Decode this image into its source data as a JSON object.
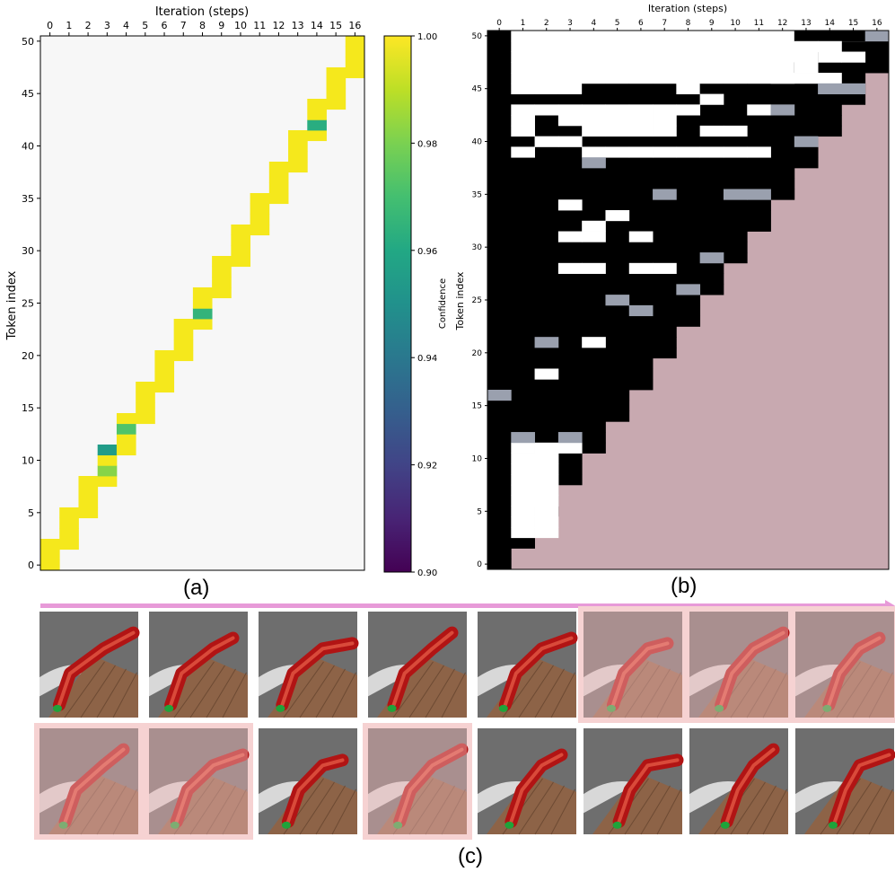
{
  "labels": {
    "a": "(a)",
    "b": "(b)",
    "c": "(c)"
  },
  "colors": {
    "high_conf": "#f5e81c",
    "masked": "#f7f7f7",
    "black": "#000000",
    "white": "#ffffff",
    "gray": "#9aa0ae",
    "mauve": "#c8a9b0",
    "arrow": "#e79ad8",
    "highlight": "#f6d2d2"
  },
  "chart_data": [
    {
      "type": "heatmap",
      "panel": "a",
      "xlabel": "Iteration (steps)",
      "ylabel": "Token index",
      "x_ticks": [
        "0",
        "1",
        "2",
        "3",
        "4",
        "5",
        "6",
        "7",
        "8",
        "9",
        "10",
        "11",
        "12",
        "13",
        "14",
        "15",
        "16"
      ],
      "y_ticks": [
        "0",
        "5",
        "10",
        "15",
        "20",
        "25",
        "30",
        "35",
        "40",
        "45",
        "50"
      ],
      "xlim": [
        0,
        16
      ],
      "ylim": [
        0,
        50
      ],
      "colorbar": {
        "label": "Confidence",
        "range": [
          0.9,
          1.0
        ],
        "ticks": [
          "0.90",
          "0.92",
          "0.94",
          "0.96",
          "0.98",
          "1.00"
        ]
      },
      "valid_region": "cells below the diagonal token ≈ 3·step",
      "default_value": 1.0,
      "low_confidence_cells": [
        [
          5,
          29,
          0.9
        ],
        [
          5,
          23,
          0.902
        ],
        [
          2,
          19,
          0.915
        ],
        [
          2,
          31,
          0.92
        ],
        [
          0,
          21,
          0.918
        ],
        [
          0,
          8,
          0.925
        ],
        [
          0,
          9,
          0.93
        ],
        [
          3,
          23,
          0.925
        ],
        [
          3,
          14,
          0.928
        ],
        [
          5,
          24,
          0.93
        ],
        [
          4,
          26,
          0.935
        ],
        [
          1,
          44,
          0.94
        ],
        [
          0,
          24,
          0.94
        ],
        [
          1,
          21,
          0.94
        ],
        [
          2,
          20,
          0.945
        ],
        [
          0,
          29,
          0.945
        ],
        [
          0,
          16,
          0.945
        ],
        [
          2,
          25,
          0.945
        ],
        [
          3,
          16,
          0.945
        ],
        [
          6,
          25,
          0.945
        ],
        [
          4,
          16,
          0.95
        ],
        [
          2,
          28,
          0.95
        ],
        [
          0,
          23,
          0.95
        ],
        [
          1,
          25,
          0.95
        ],
        [
          0,
          10,
          0.952
        ],
        [
          2,
          13,
          0.955
        ],
        [
          3,
          11,
          0.955
        ],
        [
          1,
          23,
          0.955
        ],
        [
          0,
          25,
          0.955
        ],
        [
          2,
          29,
          0.955
        ],
        [
          2,
          17,
          0.96
        ],
        [
          0,
          14,
          0.96
        ],
        [
          14,
          42,
          0.962
        ],
        [
          1,
          42,
          0.965
        ],
        [
          8,
          24,
          0.965
        ],
        [
          4,
          24,
          0.965
        ],
        [
          2,
          37,
          0.965
        ],
        [
          1,
          20,
          0.965
        ],
        [
          0,
          20,
          0.965
        ],
        [
          0,
          17,
          0.962
        ],
        [
          2,
          36,
          0.97
        ],
        [
          2,
          30,
          0.97
        ],
        [
          2,
          24,
          0.97
        ],
        [
          0,
          22,
          0.968
        ],
        [
          0,
          12,
          0.968
        ],
        [
          4,
          13,
          0.972
        ],
        [
          1,
          12,
          0.972
        ],
        [
          2,
          41,
          0.975
        ],
        [
          2,
          33,
          0.975
        ],
        [
          0,
          26,
          0.975
        ],
        [
          1,
          28,
          0.975
        ],
        [
          3,
          24,
          0.975
        ],
        [
          2,
          35,
          0.975
        ],
        [
          3,
          32,
          0.978
        ],
        [
          1,
          13,
          0.978
        ],
        [
          2,
          22,
          0.978
        ],
        [
          3,
          18,
          0.978
        ],
        [
          7,
          26,
          0.98
        ],
        [
          0,
          18,
          0.98
        ],
        [
          1,
          16,
          0.98
        ],
        [
          1,
          38,
          0.982
        ],
        [
          3,
          9,
          0.982
        ],
        [
          4,
          17,
          0.982
        ],
        [
          1,
          27,
          0.982
        ],
        [
          2,
          12,
          0.982
        ],
        [
          0,
          7,
          0.985
        ],
        [
          1,
          9,
          0.985
        ],
        [
          0,
          19,
          0.985
        ],
        [
          3,
          21,
          0.985
        ],
        [
          1,
          30,
          0.985
        ],
        [
          2,
          42,
          0.985
        ],
        [
          8,
          36,
          0.988
        ],
        [
          4,
          36,
          0.988
        ],
        [
          3,
          36,
          0.988
        ],
        [
          1,
          41,
          0.988
        ],
        [
          0,
          49,
          0.99
        ],
        [
          5,
          30,
          0.99
        ],
        [
          8,
          29,
          0.99
        ],
        [
          3,
          38,
          0.99
        ],
        [
          4,
          28,
          0.99
        ]
      ]
    },
    {
      "type": "heatmap",
      "panel": "b",
      "xlabel": "Iteration (steps)",
      "ylabel": "Token index",
      "x_ticks": [
        "0",
        "1",
        "2",
        "3",
        "4",
        "5",
        "6",
        "7",
        "8",
        "9",
        "10",
        "11",
        "12",
        "13",
        "14",
        "15",
        "16"
      ],
      "y_ticks": [
        "0",
        "5",
        "10",
        "15",
        "20",
        "25",
        "30",
        "35",
        "40",
        "45",
        "50"
      ],
      "xlim": [
        0,
        16
      ],
      "ylim": [
        0,
        50
      ],
      "categories": [
        "black",
        "white",
        "gray",
        "mauve"
      ],
      "column0_black_to_row": 50,
      "black_top_by_column": [
        50,
        44,
        44,
        44,
        45,
        45,
        45,
        45,
        44,
        45,
        45,
        45,
        45,
        47,
        48,
        49,
        49
      ],
      "white_runs": [
        [
          1,
          2,
          43,
          43
        ],
        [
          3,
          8,
          43,
          43
        ],
        [
          1,
          1,
          42,
          42
        ],
        [
          3,
          7,
          42,
          42
        ],
        [
          1,
          1,
          41,
          41
        ],
        [
          4,
          7,
          41,
          41
        ],
        [
          9,
          10,
          41,
          41
        ],
        [
          2,
          3,
          40,
          40
        ],
        [
          1,
          1,
          39,
          39
        ],
        [
          4,
          11,
          39,
          39
        ],
        [
          3,
          3,
          34,
          34
        ],
        [
          5,
          5,
          33,
          33
        ],
        [
          4,
          4,
          32,
          32
        ],
        [
          3,
          4,
          31,
          31
        ],
        [
          6,
          6,
          31,
          31
        ],
        [
          3,
          4,
          28,
          28
        ],
        [
          6,
          7,
          28,
          28
        ],
        [
          4,
          4,
          21,
          21
        ],
        [
          2,
          2,
          18,
          18
        ],
        [
          1,
          3,
          11,
          11
        ],
        [
          1,
          2,
          3,
          10
        ],
        [
          2,
          2,
          6,
          10
        ],
        [
          9,
          9,
          44,
          44
        ],
        [
          11,
          11,
          43,
          43
        ],
        [
          13,
          14,
          49,
          49
        ],
        [
          13,
          13,
          47,
          47
        ],
        [
          14,
          14,
          48,
          48
        ],
        [
          12,
          14,
          46,
          46
        ],
        [
          15,
          15,
          48,
          48
        ]
      ],
      "gray_cells": [
        [
          0,
          16
        ],
        [
          1,
          12
        ],
        [
          2,
          21
        ],
        [
          3,
          12
        ],
        [
          4,
          38
        ],
        [
          7,
          35
        ],
        [
          10,
          35
        ],
        [
          11,
          35
        ],
        [
          12,
          43
        ],
        [
          13,
          40
        ],
        [
          14,
          45
        ],
        [
          15,
          45
        ],
        [
          16,
          50
        ],
        [
          5,
          25
        ],
        [
          6,
          24
        ],
        [
          8,
          26
        ],
        [
          9,
          29
        ]
      ],
      "black_cells_extra": [
        [
          13,
          50
        ],
        [
          14,
          50
        ],
        [
          15,
          50
        ],
        [
          16,
          49
        ],
        [
          15,
          47
        ],
        [
          14,
          47
        ]
      ]
    }
  ],
  "filmstrip": {
    "row1_highlighted": [
      false,
      false,
      false,
      false,
      false,
      true,
      true,
      true
    ],
    "row2_highlighted": [
      true,
      true,
      false,
      true,
      false,
      false,
      false,
      false
    ]
  }
}
